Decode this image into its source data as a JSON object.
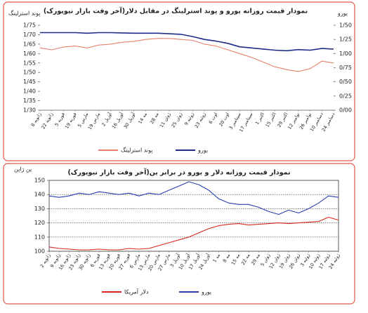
{
  "chart_data": [
    {
      "type": "line",
      "title": "نمودار قیمت روزانه یورو و پوند استرلینگ در مقابل دلار(آخر وقت بازار نیویورک)",
      "y_label": "پوند استرلینگ",
      "y2_label": "یورو",
      "categories": [
        "8 ژانویه",
        "22 ژانویه",
        "5 فوریه",
        "19 فوریه",
        "5 مارس",
        "19 مارس",
        "2 آوریل",
        "16 آوریل",
        "30 آوریل",
        "14 مه",
        "28 مه",
        "11 ژوئن",
        "25 ژوئن",
        "9 ژوئیه",
        "23 ژوئیه",
        "6 اوت",
        "20 اوت",
        "3 سپتامبر",
        "17 سپتامبر",
        "1 اکتبر",
        "15 اکتبر",
        "29 اکتبر",
        "12 نوامبر",
        "26 نوامبر",
        "10 دسامبر",
        "24 دسامبر"
      ],
      "series": [
        {
          "name": "پوند استرلینگ",
          "color": "#e8806c",
          "values": [
            1.63,
            1.62,
            1.635,
            1.64,
            1.63,
            1.645,
            1.65,
            1.66,
            1.665,
            1.675,
            1.68,
            1.68,
            1.675,
            1.67,
            1.65,
            1.64,
            1.62,
            1.6,
            1.58,
            1.555,
            1.53,
            1.515,
            1.505,
            1.52,
            1.56,
            1.55
          ]
        },
        {
          "name": "یورو",
          "color": "#1f2d8a",
          "axis": "y2",
          "values": [
            1.37,
            1.37,
            1.37,
            1.37,
            1.36,
            1.37,
            1.37,
            1.365,
            1.36,
            1.36,
            1.36,
            1.35,
            1.34,
            1.3,
            1.25,
            1.22,
            1.18,
            1.12,
            1.1,
            1.08,
            1.06,
            1.05,
            1.07,
            1.06,
            1.09,
            1.08
          ]
        }
      ],
      "ylim": [
        1.3,
        1.75
      ],
      "yticks": [
        {
          "value": 1.3,
          "label": "1/30"
        },
        {
          "value": 1.35,
          "label": "1/35"
        },
        {
          "value": 1.4,
          "label": "1/40"
        },
        {
          "value": 1.45,
          "label": "1/45"
        },
        {
          "value": 1.5,
          "label": "1/50"
        },
        {
          "value": 1.55,
          "label": "1/55"
        },
        {
          "value": 1.6,
          "label": "1/60"
        },
        {
          "value": 1.65,
          "label": "1/65"
        },
        {
          "value": 1.7,
          "label": "1/70"
        },
        {
          "value": 1.75,
          "label": "1/75"
        }
      ],
      "y2lim": [
        0,
        1.5
      ],
      "y2ticks": [
        {
          "value": 0,
          "label": "0/00"
        },
        {
          "value": 0.25,
          "label": "0/25"
        },
        {
          "value": 0.5,
          "label": "0/50"
        },
        {
          "value": 0.75,
          "label": "0/75"
        },
        {
          "value": 1,
          "label": "1/00"
        },
        {
          "value": 1.25,
          "label": "1/25"
        },
        {
          "value": 1.5,
          "label": "1/50"
        }
      ],
      "grid": false,
      "legend": "bottom"
    },
    {
      "type": "line",
      "title": "نمودار قیمت روزانه دلار و یورو در برابر ین(آخر وقت بازار نیویورک)",
      "y_label": "ین ژاپن",
      "categories": [
        "2 ژانویه",
        "9 ژانویه",
        "16 ژانویه",
        "23 ژانویه",
        "30 ژانویه",
        "6 فوریه",
        "13 فوریه",
        "20 فوریه",
        "27 فوریه",
        "6 مارس",
        "13 مارس",
        "20 مارس",
        "27 مارس",
        "3 آوریل",
        "10 آوریل",
        "17 آوریل",
        "24 آوریل",
        "1 مه",
        "8 مه",
        "15 مه",
        "22 مه",
        "29 مه",
        "5 ژوئن",
        "12 ژوئن",
        "19 ژوئن",
        "26 ژوئن",
        "3 ژوئیه",
        "10 ژوئیه",
        "17 ژوئیه",
        "24 ژوئیه"
      ],
      "series": [
        {
          "name": "دلار آمریکا",
          "color": "#d42a1e",
          "values": [
            103,
            102,
            101.5,
            101,
            101,
            101.5,
            101,
            101,
            102,
            101.5,
            102,
            104,
            106,
            108,
            110,
            113,
            116,
            118,
            119,
            119.5,
            118.5,
            119,
            119.5,
            120,
            119.5,
            120,
            120.5,
            121,
            124,
            122
          ]
        },
        {
          "name": "یورو",
          "color": "#2a3fb0",
          "values": [
            139,
            138,
            139,
            141,
            140,
            142,
            141,
            140,
            141,
            139,
            141,
            140,
            143,
            146,
            149,
            147,
            143,
            137,
            134,
            133,
            133,
            131,
            128,
            126,
            129,
            127,
            130,
            134,
            139,
            138
          ]
        }
      ],
      "ylim": [
        100,
        150
      ],
      "yticks": [
        100,
        110,
        120,
        130,
        140,
        150
      ],
      "grid": true,
      "legend": "bottom"
    }
  ]
}
